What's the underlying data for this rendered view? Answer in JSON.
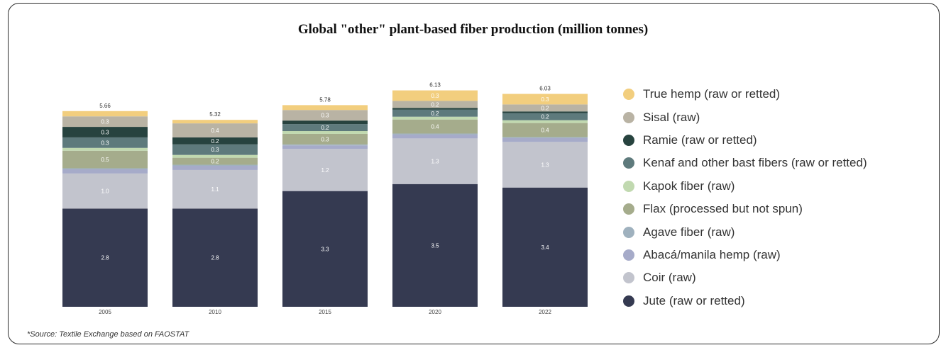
{
  "chart_data": {
    "type": "bar",
    "stacked": true,
    "title": "Global \"other\" plant-based fiber production (million tonnes)",
    "categories": [
      "2005",
      "2010",
      "2015",
      "2020",
      "2022"
    ],
    "totals": [
      "5.66",
      "5.32",
      "5.78",
      "6.13",
      "6.03"
    ],
    "series": [
      {
        "name": "Jute (raw or retted)",
        "color": "#353a51",
        "values": [
          2.8,
          2.8,
          3.3,
          3.5,
          3.4
        ],
        "labels": [
          "2.8",
          "2.8",
          "3.3",
          "3.5",
          "3.4"
        ]
      },
      {
        "name": "Coir (raw)",
        "color": "#c2c4cd",
        "values": [
          1.0,
          1.1,
          1.2,
          1.3,
          1.3
        ],
        "labels": [
          "1.0",
          "1.1",
          "1.2",
          "1.3",
          "1.3"
        ]
      },
      {
        "name": "Abacá/manila hemp (raw)",
        "color": "#a6abc9",
        "values": [
          0.12,
          0.12,
          0.1,
          0.11,
          0.11
        ],
        "labels": [
          "",
          "",
          "",
          "",
          ""
        ]
      },
      {
        "name": "Agave fiber (raw)",
        "color": "#9fb1be",
        "values": [
          0.03,
          0.03,
          0.03,
          0.03,
          0.03
        ],
        "labels": [
          "",
          "",
          "",
          "",
          ""
        ]
      },
      {
        "name": "Flax (processed but not spun)",
        "color": "#a5ac8c",
        "values": [
          0.5,
          0.2,
          0.3,
          0.4,
          0.4
        ],
        "labels": [
          "0.5",
          "0.2",
          "0.3",
          "0.4",
          "0.4"
        ]
      },
      {
        "name": "Kapok fiber (raw)",
        "color": "#c1d9b0",
        "values": [
          0.08,
          0.08,
          0.08,
          0.08,
          0.08
        ],
        "labels": [
          "",
          "",
          "",
          "",
          ""
        ]
      },
      {
        "name": "Kenaf and other bast fibers  (raw or retted)",
        "color": "#5e7a7c",
        "values": [
          0.3,
          0.3,
          0.2,
          0.2,
          0.2
        ],
        "labels": [
          "0.3",
          "0.3",
          "0.2",
          "0.2",
          "0.2"
        ]
      },
      {
        "name": "Ramie (raw or retted)",
        "color": "#27433f",
        "values": [
          0.3,
          0.2,
          0.1,
          0.05,
          0.05
        ],
        "labels": [
          "0.3",
          "0.2",
          "",
          "",
          ""
        ]
      },
      {
        "name": "Sisal (raw)",
        "color": "#b9b3a4",
        "values": [
          0.3,
          0.4,
          0.3,
          0.2,
          0.2
        ],
        "labels": [
          "0.3",
          "0.4",
          "0.3",
          "0.2",
          "0.2"
        ]
      },
      {
        "name": "True hemp (raw or retted)",
        "color": "#f2ce7e",
        "values": [
          0.15,
          0.1,
          0.14,
          0.3,
          0.3
        ],
        "labels": [
          "",
          "",
          "",
          "0.3",
          "0.3"
        ]
      }
    ],
    "legend_position": "right",
    "grid": false
  },
  "source": "*Source: Textile Exchange based on FAOSTAT"
}
